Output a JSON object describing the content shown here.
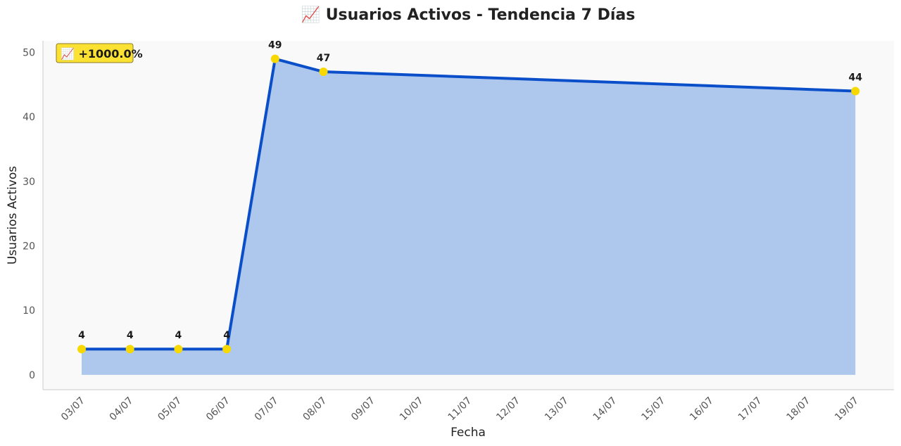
{
  "chart_data": {
    "type": "area",
    "title": "📈 Usuarios Activos - Tendencia 7 Días",
    "xlabel": "Fecha",
    "ylabel": "Usuarios Activos",
    "ylim": [
      -2.3,
      51.8
    ],
    "yticks": [
      0,
      10,
      20,
      30,
      40,
      50
    ],
    "categories": [
      "03/07",
      "04/07",
      "05/07",
      "06/07",
      "07/07",
      "08/07",
      "09/07",
      "10/07",
      "11/07",
      "12/07",
      "13/07",
      "14/07",
      "15/07",
      "16/07",
      "17/07",
      "18/07",
      "19/07"
    ],
    "points": [
      {
        "x": "03/07",
        "y": 4
      },
      {
        "x": "04/07",
        "y": 4
      },
      {
        "x": "05/07",
        "y": 4
      },
      {
        "x": "06/07",
        "y": 4
      },
      {
        "x": "07/07",
        "y": 49
      },
      {
        "x": "08/07",
        "y": 47
      },
      {
        "x": "19/07",
        "y": 44
      }
    ],
    "grid": false,
    "colors": {
      "line": "#0a4fc9",
      "fill": "#adc7ed",
      "marker": "#f7d800",
      "plot_bg": "#f9f9f9",
      "badge_bg": "#fbe232",
      "badge_border": "#8c7a2a"
    },
    "annotation": {
      "text": "📈 +1000.0%",
      "placement": "top-left"
    }
  }
}
